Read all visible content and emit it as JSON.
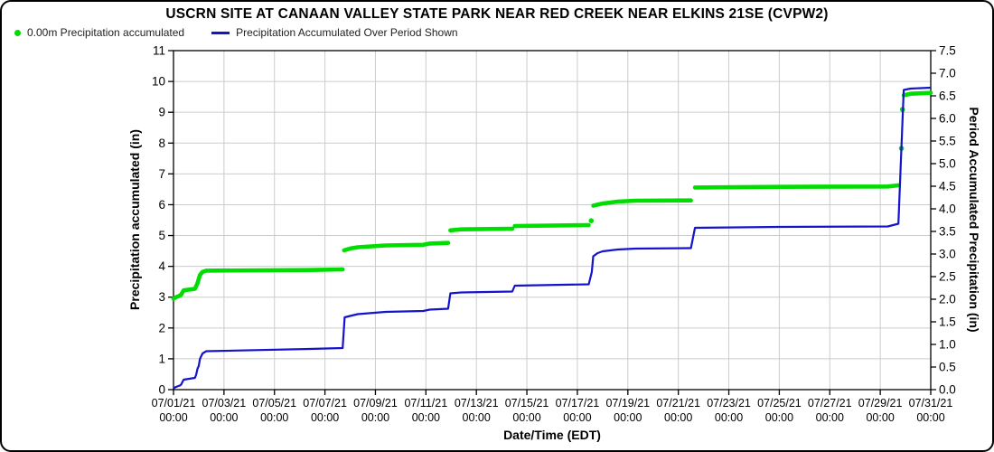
{
  "window": {
    "title": "USCRN SITE AT CANAAN VALLEY STATE PARK NEAR RED CREEK NEAR ELKINS 21SE (CVPW2)"
  },
  "legend": {
    "items": [
      {
        "label": "0.00m Precipitation accumulated",
        "marker": "dot",
        "color": "#00DD00"
      },
      {
        "label": "Precipitation Accumulated Over Period Shown",
        "marker": "line",
        "color": "#1414CC"
      }
    ]
  },
  "chart_data": {
    "type": "line",
    "title": "USCRN SITE AT CANAAN VALLEY STATE PARK NEAR RED CREEK NEAR ELKINS 21SE (CVPW2)",
    "grid": true,
    "x_axis": {
      "label": "Date/Time (EDT)",
      "range_days": [
        1,
        31
      ],
      "tick_days": [
        1,
        3,
        5,
        7,
        9,
        11,
        13,
        15,
        17,
        19,
        21,
        23,
        25,
        27,
        29,
        31
      ],
      "tick_labels": [
        [
          "07/01/21",
          "00:00"
        ],
        [
          "07/03/21",
          "00:00"
        ],
        [
          "07/05/21",
          "00:00"
        ],
        [
          "07/07/21",
          "00:00"
        ],
        [
          "07/09/21",
          "00:00"
        ],
        [
          "07/11/21",
          "00:00"
        ],
        [
          "07/13/21",
          "00:00"
        ],
        [
          "07/15/21",
          "00:00"
        ],
        [
          "07/17/21",
          "00:00"
        ],
        [
          "07/19/21",
          "00:00"
        ],
        [
          "07/21/21",
          "00:00"
        ],
        [
          "07/23/21",
          "00:00"
        ],
        [
          "07/25/21",
          "00:00"
        ],
        [
          "07/27/21",
          "00:00"
        ],
        [
          "07/29/21",
          "00:00"
        ],
        [
          "07/31/21",
          "00:00"
        ]
      ]
    },
    "y_left": {
      "label": "Precipitation accumulated (in)",
      "range": [
        0,
        11
      ],
      "tick_labels": [
        "0",
        "1",
        "2",
        "3",
        "4",
        "5",
        "6",
        "7",
        "8",
        "9",
        "10",
        "11"
      ]
    },
    "y_right": {
      "label": "Period Accumulated Precipitation (in)",
      "range": [
        0,
        7.5
      ],
      "tick_labels": [
        "0.0",
        "0.5",
        "1.0",
        "1.5",
        "2.0",
        "2.5",
        "3.0",
        "3.5",
        "4.0",
        "4.5",
        "5.0",
        "5.5",
        "6.0",
        "6.5",
        "7.0",
        "7.5"
      ]
    },
    "series": [
      {
        "name": "0.00m Precipitation accumulated",
        "axis": "left",
        "style": "scatter-thick",
        "color": "#00DD00",
        "runs": [
          [
            [
              1.0,
              2.95
            ],
            [
              1.1,
              3.0
            ],
            [
              1.25,
              3.05
            ],
            [
              1.3,
              3.08
            ],
            [
              1.4,
              3.22
            ],
            [
              1.85,
              3.27
            ],
            [
              1.95,
              3.45
            ],
            [
              2.05,
              3.72
            ],
            [
              2.15,
              3.82
            ],
            [
              2.3,
              3.86
            ],
            [
              6.4,
              3.88
            ],
            [
              7.7,
              3.9
            ]
          ],
          [
            [
              7.76,
              4.52
            ],
            [
              8.0,
              4.58
            ],
            [
              8.3,
              4.62
            ],
            [
              9.4,
              4.68
            ],
            [
              10.9,
              4.7
            ],
            [
              11.15,
              4.74
            ],
            [
              11.88,
              4.76
            ]
          ],
          [
            [
              11.97,
              5.17
            ],
            [
              12.4,
              5.2
            ],
            [
              14.42,
              5.22
            ]
          ],
          [
            [
              14.52,
              5.31
            ],
            [
              17.45,
              5.34
            ]
          ],
          [
            [
              17.63,
              5.97
            ],
            [
              18.0,
              6.04
            ],
            [
              18.6,
              6.1
            ],
            [
              19.3,
              6.13
            ],
            [
              21.5,
              6.14
            ]
          ],
          [
            [
              21.66,
              6.56
            ],
            [
              25.0,
              6.58
            ],
            [
              29.3,
              6.59
            ],
            [
              29.72,
              6.63
            ]
          ],
          [
            [
              29.93,
              9.55
            ],
            [
              30.2,
              9.6
            ],
            [
              31.0,
              9.63
            ]
          ]
        ],
        "lone_dots": [
          [
            17.55,
            5.48
          ],
          [
            29.84,
            7.83
          ],
          [
            29.88,
            9.09
          ]
        ]
      },
      {
        "name": "Precipitation Accumulated Over Period Shown",
        "axis": "right",
        "style": "line",
        "color": "#1414CC",
        "points": [
          [
            1.0,
            0.03
          ],
          [
            1.1,
            0.06
          ],
          [
            1.25,
            0.09
          ],
          [
            1.3,
            0.11
          ],
          [
            1.4,
            0.22
          ],
          [
            1.85,
            0.26
          ],
          [
            1.9,
            0.33
          ],
          [
            1.95,
            0.46
          ],
          [
            2.0,
            0.52
          ],
          [
            2.05,
            0.68
          ],
          [
            2.15,
            0.8
          ],
          [
            2.3,
            0.85
          ],
          [
            6.4,
            0.9
          ],
          [
            7.7,
            0.92
          ],
          [
            7.78,
            1.6
          ],
          [
            8.0,
            1.63
          ],
          [
            8.3,
            1.67
          ],
          [
            9.4,
            1.72
          ],
          [
            10.9,
            1.74
          ],
          [
            11.15,
            1.77
          ],
          [
            11.88,
            1.79
          ],
          [
            11.97,
            2.13
          ],
          [
            12.4,
            2.15
          ],
          [
            14.42,
            2.17
          ],
          [
            14.52,
            2.3
          ],
          [
            17.45,
            2.33
          ],
          [
            17.57,
            2.6
          ],
          [
            17.63,
            2.95
          ],
          [
            17.8,
            3.02
          ],
          [
            18.0,
            3.06
          ],
          [
            18.6,
            3.1
          ],
          [
            19.3,
            3.12
          ],
          [
            21.5,
            3.13
          ],
          [
            21.66,
            3.58
          ],
          [
            25.0,
            3.6
          ],
          [
            29.3,
            3.61
          ],
          [
            29.72,
            3.67
          ],
          [
            29.93,
            6.63
          ],
          [
            30.2,
            6.66
          ],
          [
            31.0,
            6.68
          ]
        ]
      }
    ],
    "colors": {
      "grid": "#CCCCCC",
      "frame": "#000000",
      "background": "#FFFFFF"
    }
  }
}
